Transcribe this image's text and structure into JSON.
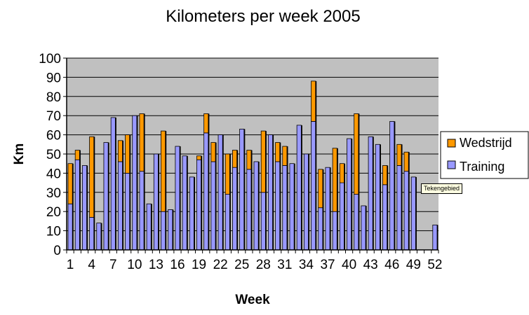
{
  "chart_data": {
    "type": "bar",
    "stacked": true,
    "title": "Kilometers per week 2005",
    "xlabel": "Week",
    "ylabel": "Km",
    "ylim": [
      0,
      100
    ],
    "yticks": [
      0,
      10,
      20,
      30,
      40,
      50,
      60,
      70,
      80,
      90,
      100
    ],
    "xtick_labels": [
      "1",
      "4",
      "7",
      "10",
      "13",
      "16",
      "19",
      "22",
      "25",
      "28",
      "31",
      "34",
      "37",
      "40",
      "43",
      "46",
      "49",
      "52"
    ],
    "grid": true,
    "legend": "right",
    "categories": [
      1,
      2,
      3,
      4,
      5,
      6,
      7,
      8,
      9,
      10,
      11,
      12,
      13,
      14,
      15,
      16,
      17,
      18,
      19,
      20,
      21,
      22,
      23,
      24,
      25,
      26,
      27,
      28,
      29,
      30,
      31,
      32,
      33,
      34,
      35,
      36,
      37,
      38,
      39,
      40,
      41,
      42,
      43,
      44,
      45,
      46,
      47,
      48,
      49,
      50,
      51,
      52
    ],
    "series": [
      {
        "name": "Training",
        "color": "#9999ff",
        "values": [
          24,
          47,
          44,
          17,
          14,
          56,
          69,
          46,
          40,
          70,
          41,
          24,
          50,
          20,
          21,
          54,
          49,
          38,
          47,
          61,
          46,
          60,
          29,
          43,
          63,
          42,
          46,
          30,
          60,
          46,
          44,
          45,
          65,
          50,
          67,
          22,
          43,
          20,
          35,
          58,
          29,
          23,
          59,
          55,
          34,
          67,
          44,
          41,
          38,
          0,
          0,
          13
        ]
      },
      {
        "name": "Wedstrijd",
        "color": "#ff9900",
        "values": [
          21,
          5,
          0,
          42,
          0,
          0,
          0,
          11,
          20,
          0,
          30,
          0,
          0,
          42,
          0,
          0,
          0,
          0,
          2,
          10,
          10,
          0,
          21,
          9,
          0,
          10,
          0,
          32,
          0,
          10,
          10,
          0,
          0,
          0,
          21,
          20,
          0,
          33,
          10,
          0,
          42,
          0,
          0,
          0,
          10,
          0,
          11,
          10,
          0,
          0,
          0,
          0
        ]
      }
    ]
  },
  "plot_area_color": "#c0c0c0",
  "tooltip": {
    "text": "Tekengebied"
  }
}
